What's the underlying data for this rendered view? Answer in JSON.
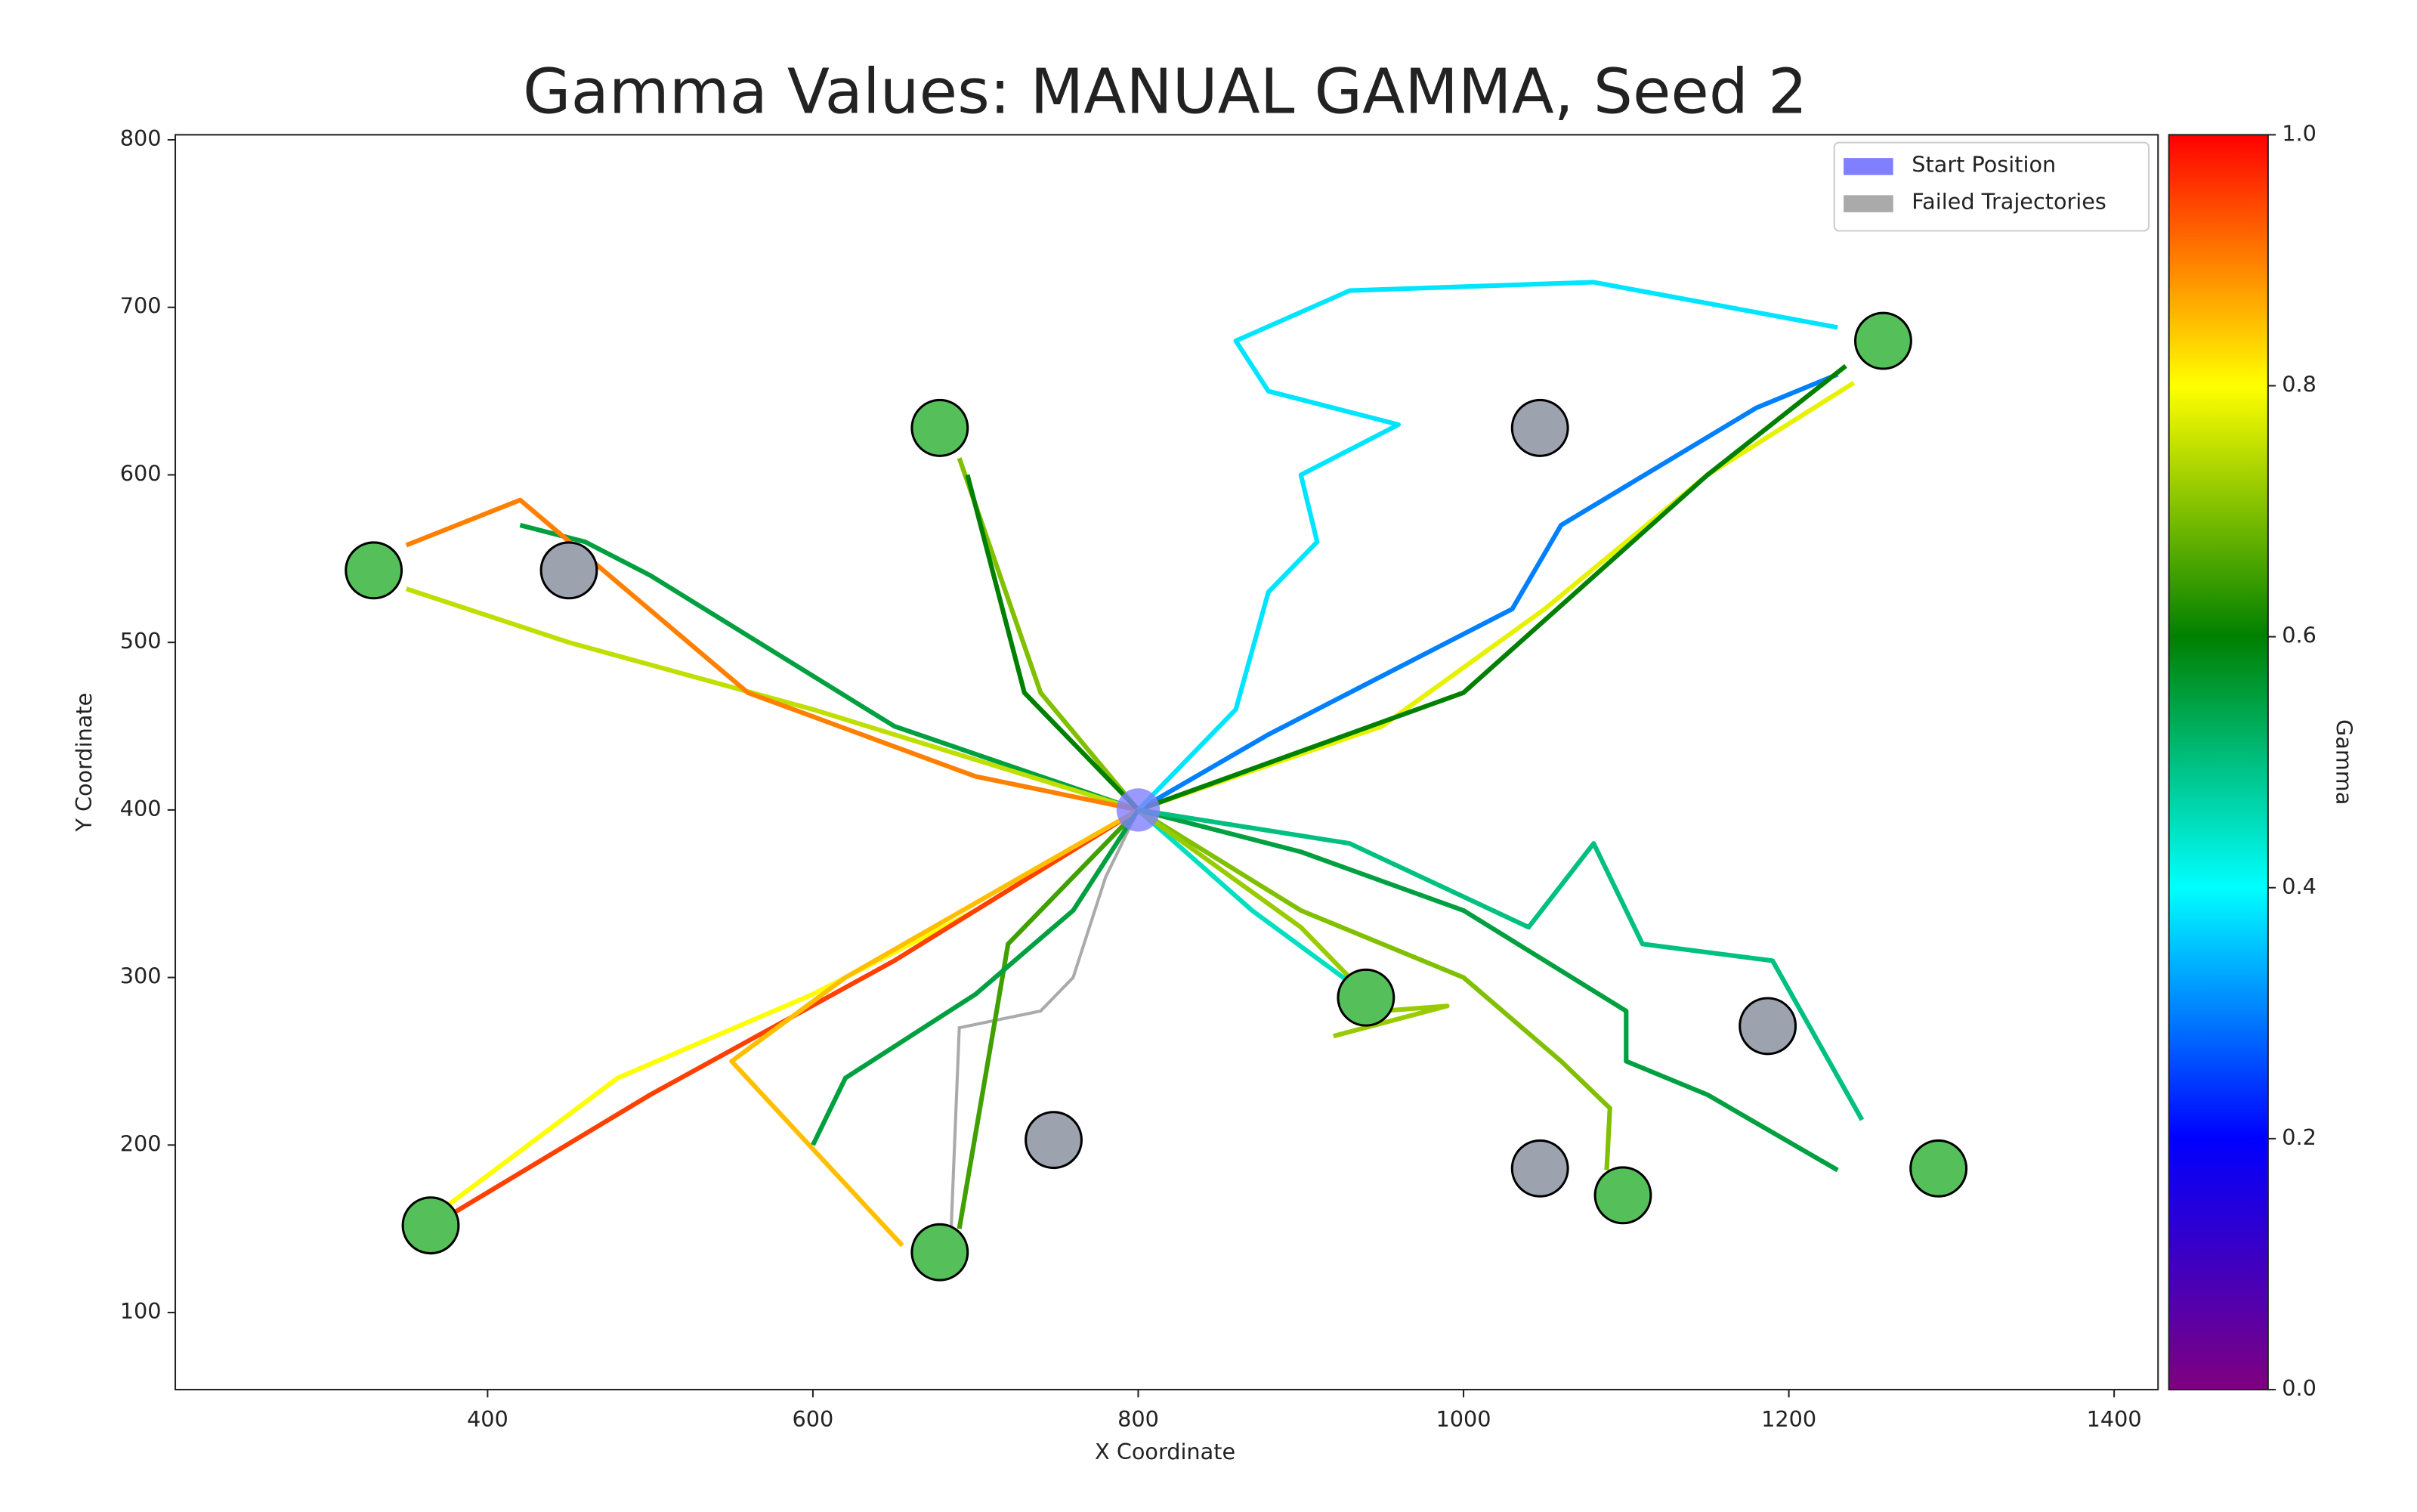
{
  "chart_data": {
    "type": "trajectory",
    "title": "Gamma Values: MANUAL GAMMA, Seed 2",
    "x_label": "X Coordinate",
    "y_label": "Y Coordinate",
    "xlim": [
      208,
      1427
    ],
    "ylim": [
      54,
      803
    ],
    "xticks": [
      400,
      600,
      800,
      1000,
      1200,
      1400
    ],
    "yticks": [
      100,
      200,
      300,
      400,
      500,
      600,
      700,
      800
    ],
    "legend": {
      "position": "upper right",
      "entries": [
        {
          "name": "Start Position",
          "color": "#8080ff"
        },
        {
          "name": "Failed Trajectories",
          "color": "#aaaaaa"
        }
      ]
    },
    "colorbar": {
      "label": "Gamma",
      "lim": [
        0,
        1
      ],
      "ticks": [
        {
          "value": 0,
          "label": "0.0"
        },
        0.2,
        0.4,
        0.6,
        0.8,
        {
          "value": 1,
          "label": "1.0"
        }
      ],
      "colormap": [
        "#800080",
        "#0000ff",
        "#00ffff",
        "#008000",
        "#ffff00",
        "#ff0000"
      ]
    },
    "start": {
      "x": 800,
      "y": 400
    },
    "trajectories": [
      {
        "gamma": 0.55,
        "x": [
          800,
          650,
          500,
          460,
          420
        ],
        "y": [
          400,
          450,
          540,
          560,
          570
        ]
      },
      {
        "gamma": 0.75,
        "x": [
          800,
          600,
          450,
          350
        ],
        "y": [
          400,
          460,
          500,
          532
        ]
      },
      {
        "gamma": 0.9,
        "x": [
          800,
          700,
          560,
          420,
          350
        ],
        "y": [
          400,
          420,
          470,
          585,
          558
        ]
      },
      {
        "gamma": 0.7,
        "x": [
          800,
          740,
          690
        ],
        "y": [
          400,
          470,
          610
        ]
      },
      {
        "gamma": 0.6,
        "x": [
          800,
          730,
          695
        ],
        "y": [
          400,
          470,
          600
        ]
      },
      {
        "gamma": 0.3,
        "x": [
          800,
          880,
          950,
          1030,
          1060,
          1180,
          1230
        ],
        "y": [
          400,
          445,
          480,
          520,
          570,
          640,
          660
        ]
      },
      {
        "gamma": 0.78,
        "x": [
          800,
          950,
          1050,
          1150,
          1240
        ],
        "y": [
          400,
          450,
          520,
          600,
          655
        ]
      },
      {
        "gamma": 0.6,
        "x": [
          800,
          1000,
          1150,
          1235
        ],
        "y": [
          400,
          470,
          600,
          665
        ]
      },
      {
        "gamma": 0.38,
        "x": [
          800,
          860,
          880,
          910,
          900,
          960,
          880,
          860,
          930,
          1080,
          1230
        ],
        "y": [
          400,
          460,
          530,
          560,
          600,
          630,
          650,
          680,
          710,
          715,
          688
        ]
      },
      {
        "gamma": 0.8,
        "x": [
          800,
          700,
          600,
          480,
          370
        ],
        "y": [
          400,
          340,
          290,
          240,
          160
        ]
      },
      {
        "gamma": 0.95,
        "x": [
          800,
          650,
          500,
          380
        ],
        "y": [
          400,
          310,
          230,
          160
        ]
      },
      {
        "gamma": 0.65,
        "x": [
          800,
          720,
          690
        ],
        "y": [
          400,
          320,
          150
        ]
      },
      {
        "gamma": 0.85,
        "x": [
          800,
          620,
          550,
          655
        ],
        "y": [
          400,
          300,
          250,
          140
        ]
      },
      {
        "gamma": 0.55,
        "x": [
          800,
          760,
          700,
          620,
          600
        ],
        "y": [
          400,
          340,
          290,
          240,
          200
        ]
      },
      {
        "gamma": 0.45,
        "x": [
          800,
          870,
          940
        ],
        "y": [
          400,
          340,
          290
        ]
      },
      {
        "gamma": 0.7,
        "x": [
          800,
          900,
          1000,
          1060,
          1090,
          1088
        ],
        "y": [
          400,
          340,
          300,
          250,
          222,
          185
        ]
      },
      {
        "gamma": 0.72,
        "x": [
          800,
          900,
          950,
          990,
          920
        ],
        "y": [
          400,
          330,
          280,
          283,
          265
        ]
      },
      {
        "gamma": 0.55,
        "x": [
          800,
          900,
          1000,
          1100,
          1100,
          1150,
          1230
        ],
        "y": [
          400,
          375,
          340,
          280,
          250,
          230,
          185
        ]
      },
      {
        "gamma": 0.5,
        "x": [
          800,
          930,
          1040,
          1080,
          1110,
          1190,
          1245
        ],
        "y": [
          400,
          380,
          330,
          380,
          320,
          310,
          215
        ]
      }
    ],
    "failed_trajectories": [
      {
        "x": [
          800,
          780,
          760,
          740,
          690,
          685
        ],
        "y": [
          400,
          360,
          300,
          280,
          270,
          150
        ]
      }
    ],
    "goals": {
      "color": "#55c05a",
      "x": [
        330,
        365,
        678,
        678,
        940,
        1098,
        1258,
        1292
      ],
      "y": [
        543,
        152,
        628,
        136,
        288,
        170,
        680,
        186
      ]
    },
    "obstacles": {
      "color": "#9ca3af",
      "x": [
        450,
        1047,
        1187,
        748,
        1047
      ],
      "y": [
        543,
        628,
        271,
        203,
        186
      ]
    }
  }
}
